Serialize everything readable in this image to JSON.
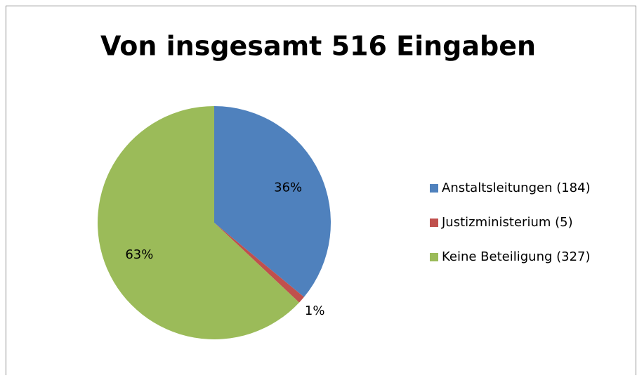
{
  "chart_data": {
    "type": "pie",
    "title": "Von insgesamt 516 Eingaben",
    "categories": [
      "Anstaltsleitungen (184)",
      "Justizministerium (5)",
      "Keine Beteiligung (327)"
    ],
    "values": [
      36,
      1,
      63
    ],
    "value_labels": [
      "36%",
      "1%",
      "63%"
    ],
    "colors": [
      "#4f81bd",
      "#c0504d",
      "#9bbb59"
    ],
    "legend": "right"
  }
}
